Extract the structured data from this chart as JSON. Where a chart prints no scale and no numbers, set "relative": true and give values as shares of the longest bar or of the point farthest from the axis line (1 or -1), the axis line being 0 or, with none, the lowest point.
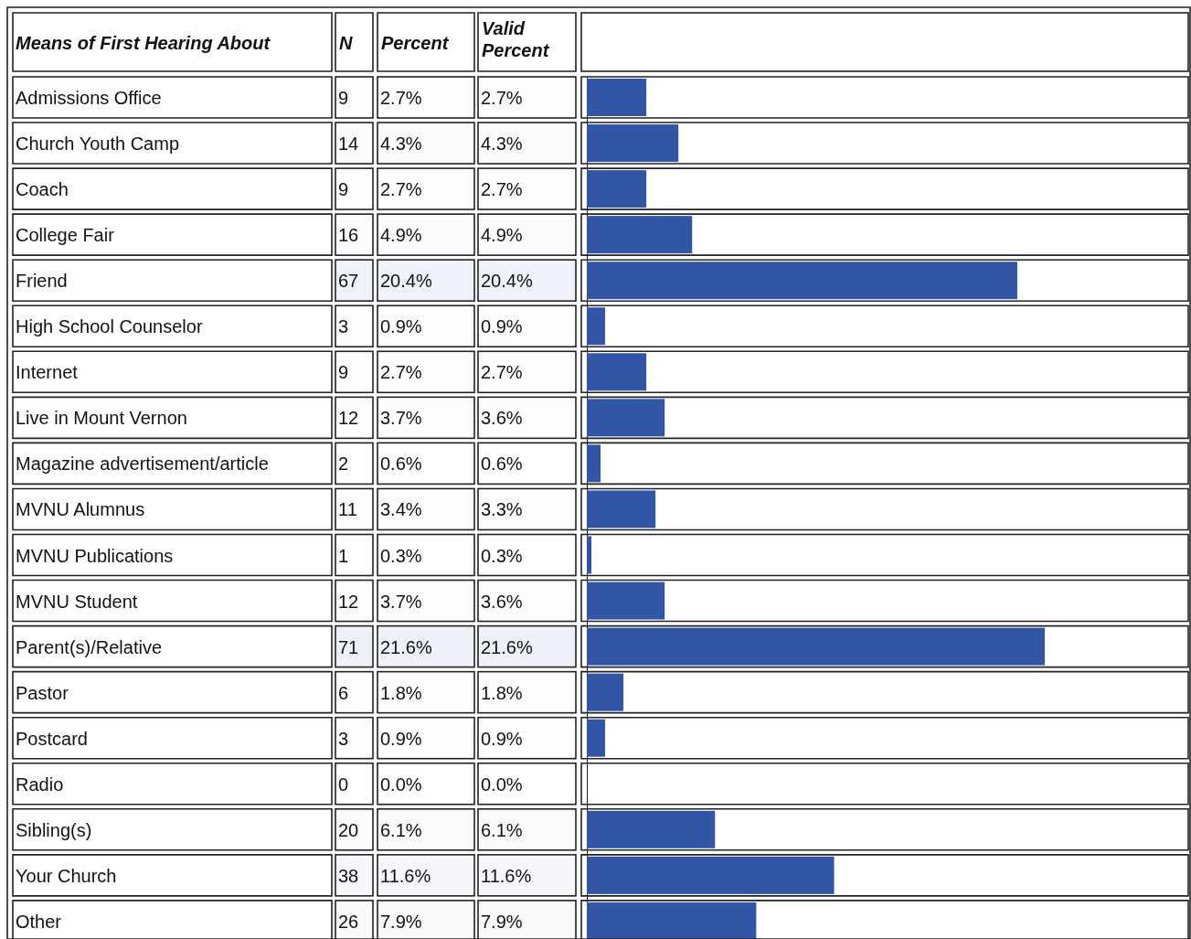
{
  "chart_data": [
    {
      "type": "heatmap",
      "ylabel": "Means of First Hearing About",
      "categories": [
        "N",
        "Percent",
        "Valid Percent"
      ],
      "y_categories": [
        "Admissions Office",
        "Church Youth Camp",
        "Coach",
        "College Fair",
        "Friend",
        "High School Counselor",
        "Internet",
        "Live in Mount Vernon",
        "Magazine advertisement/article",
        "MVNU Alumnus",
        "MVNU Publications",
        "MVNU Student",
        "Parent(s)/Relative",
        "Pastor",
        "Postcard",
        "Radio",
        "Sibling(s)",
        "Your Church",
        "Other"
      ],
      "cells": [
        [
          9,
          2.7,
          2.7
        ],
        [
          14,
          4.3,
          4.3
        ],
        [
          9,
          2.7,
          2.7
        ],
        [
          16,
          4.9,
          4.9
        ],
        [
          67,
          20.4,
          20.4
        ],
        [
          3,
          0.9,
          0.9
        ],
        [
          9,
          2.7,
          2.7
        ],
        [
          12,
          3.7,
          3.6
        ],
        [
          2,
          0.6,
          0.6
        ],
        [
          11,
          3.4,
          3.3
        ],
        [
          1,
          0.3,
          0.3
        ],
        [
          12,
          3.7,
          3.6
        ],
        [
          71,
          21.6,
          21.6
        ],
        [
          6,
          1.8,
          1.8
        ],
        [
          3,
          0.9,
          0.9
        ],
        [
          0,
          0.0,
          0.0
        ],
        [
          20,
          6.1,
          6.1
        ],
        [
          38,
          11.6,
          11.6
        ],
        [
          26,
          7.9,
          7.9
        ]
      ],
      "cell_labels": [
        [
          "9",
          "2.7%",
          "2.7%"
        ],
        [
          "14",
          "4.3%",
          "4.3%"
        ],
        [
          "9",
          "2.7%",
          "2.7%"
        ],
        [
          "16",
          "4.9%",
          "4.9%"
        ],
        [
          "67",
          "20.4%",
          "20.4%"
        ],
        [
          "3",
          "0.9%",
          "0.9%"
        ],
        [
          "9",
          "2.7%",
          "2.7%"
        ],
        [
          "12",
          "3.7%",
          "3.6%"
        ],
        [
          "2",
          "0.6%",
          "0.6%"
        ],
        [
          "11",
          "3.4%",
          "3.3%"
        ],
        [
          "1",
          "0.3%",
          "0.3%"
        ],
        [
          "12",
          "3.7%",
          "3.6%"
        ],
        [
          "71",
          "21.6%",
          "21.6%"
        ],
        [
          "6",
          "1.8%",
          "1.8%"
        ],
        [
          "3",
          "0.9%",
          "0.9%"
        ],
        [
          "0",
          "0.0%",
          "0.0%"
        ],
        [
          "20",
          "6.1%",
          "6.1%"
        ],
        [
          "38",
          "11.6%",
          "11.6%"
        ],
        [
          "26",
          "7.9%",
          "7.9%"
        ]
      ]
    },
    {
      "type": "bar",
      "orientation": "horizontal",
      "relative": true,
      "categories": [
        null,
        null,
        null,
        null,
        null,
        null,
        null,
        null,
        null,
        null,
        null,
        null,
        null,
        null,
        null,
        null,
        null,
        null,
        null
      ],
      "series": [
        {
          "color": "#3355a5",
          "values": [
            0.13,
            0.2,
            0.13,
            0.23,
            0.94,
            0.04,
            0.13,
            0.17,
            0.03,
            0.15,
            0.01,
            0.17,
            1,
            0.08,
            0.04,
            0,
            0.28,
            0.54,
            0.37
          ]
        }
      ]
    }
  ]
}
